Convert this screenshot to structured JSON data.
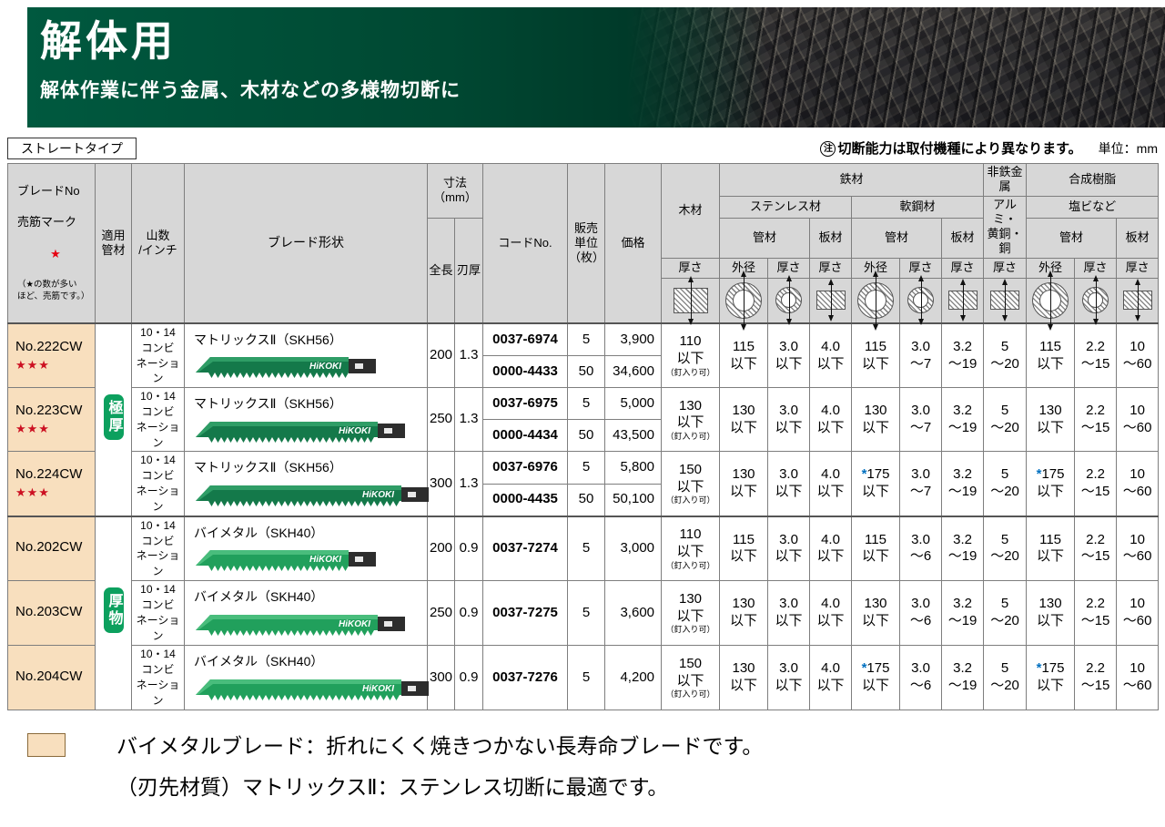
{
  "banner": {
    "title": "解体用",
    "subtitle": "解体作業に伴う金属、木材などの多様物切断に"
  },
  "meta": {
    "type_label": "ストレートタイプ",
    "note_mark": "注",
    "note": "切断能力は取付機種により異なります。",
    "unit_label": "単位：mm"
  },
  "colors": {
    "brand_green": "#00593f",
    "badge_green": "#0ca05e",
    "row_beige": "#f8dfbe",
    "star_red": "#e60012",
    "asterisk_blue": "#0070c0"
  },
  "headers": {
    "blade_no": "ブレードNo",
    "seller_mark": "売筋マーク",
    "star": "★",
    "star_note": "（★の数が多い\nほど、売筋です。）",
    "applicable": "適用\n管材",
    "teeth": "山数\n/インチ",
    "shape": "ブレード形状",
    "dim": "寸法\n（mm）",
    "length": "全長",
    "blade_t": "刃厚",
    "code": "コードNo.",
    "sales_unit": "販売\n単位\n（枚）",
    "price": "価格",
    "wood": "木材",
    "steel": "鉄材",
    "stainless": "ステンレス材",
    "soft": "軟鋼材",
    "nonferrous": "非鉄金属",
    "alum": "アルミ・\n黄銅・銅",
    "resin": "合成樹脂",
    "pvc": "塩ビなど",
    "pipe": "管材",
    "plate": "板材",
    "od": "外径",
    "thickness": "厚さ"
  },
  "groups": [
    {
      "label": "極厚",
      "start": 0,
      "span": 6
    },
    {
      "label": "厚物",
      "start": 3,
      "span": 3
    }
  ],
  "rows": [
    {
      "no": "No.222CW",
      "stars": "★★★",
      "teeth": "10・14\nコンビ\nネーション",
      "shape": "マトリックスⅡ（SKH56）",
      "len": "200",
      "bt": "1.3",
      "entries": [
        {
          "code": "0037-6974",
          "unit": "5",
          "price": "3,900"
        },
        {
          "code": "0000-4433",
          "unit": "50",
          "price": "34,600"
        }
      ],
      "wood": {
        "v": "110\n以下",
        "note": "（釘入り可）"
      },
      "vals": [
        "115\n以下",
        "3.0\n以下",
        "4.0\n以下",
        "115\n以下",
        "3.0\n～7",
        "3.2\n～19",
        "5\n～20",
        "115\n以下",
        "2.2\n～15",
        "10\n～60"
      ]
    },
    {
      "no": "No.223CW",
      "stars": "★★★",
      "teeth": "10・14\nコンビ\nネーション",
      "shape": "マトリックスⅡ（SKH56）",
      "len": "250",
      "bt": "1.3",
      "entries": [
        {
          "code": "0037-6975",
          "unit": "5",
          "price": "5,000"
        },
        {
          "code": "0000-4434",
          "unit": "50",
          "price": "43,500"
        }
      ],
      "wood": {
        "v": "130\n以下",
        "note": "（釘入り可）"
      },
      "vals": [
        "130\n以下",
        "3.0\n以下",
        "4.0\n以下",
        "130\n以下",
        "3.0\n～7",
        "3.2\n～19",
        "5\n～20",
        "130\n以下",
        "2.2\n～15",
        "10\n～60"
      ]
    },
    {
      "no": "No.224CW",
      "stars": "★★★",
      "teeth": "10・14\nコンビ\nネーション",
      "shape": "マトリックスⅡ（SKH56）",
      "len": "300",
      "bt": "1.3",
      "entries": [
        {
          "code": "0037-6976",
          "unit": "5",
          "price": "5,800"
        },
        {
          "code": "0000-4435",
          "unit": "50",
          "price": "50,100"
        }
      ],
      "wood": {
        "v": "150\n以下",
        "note": "（釘入り可）"
      },
      "vals": [
        "130\n以下",
        "3.0\n以下",
        "4.0\n以下",
        "*175\n以下",
        "3.0\n～7",
        "3.2\n～19",
        "5\n～20",
        "*175\n以下",
        "2.2\n～15",
        "10\n～60"
      ]
    },
    {
      "no": "No.202CW",
      "stars": "",
      "teeth": "10・14\nコンビ\nネーション",
      "shape": "バイメタル（SKH40）",
      "len": "200",
      "bt": "0.9",
      "entries": [
        {
          "code": "0037-7274",
          "unit": "5",
          "price": "3,000"
        }
      ],
      "wood": {
        "v": "110\n以下",
        "note": "（釘入り可）"
      },
      "vals": [
        "115\n以下",
        "3.0\n以下",
        "4.0\n以下",
        "115\n以下",
        "3.0\n～6",
        "3.2\n～19",
        "5\n～20",
        "115\n以下",
        "2.2\n～15",
        "10\n～60"
      ]
    },
    {
      "no": "No.203CW",
      "stars": "",
      "teeth": "10・14\nコンビ\nネーション",
      "shape": "バイメタル（SKH40）",
      "len": "250",
      "bt": "0.9",
      "entries": [
        {
          "code": "0037-7275",
          "unit": "5",
          "price": "3,600"
        }
      ],
      "wood": {
        "v": "130\n以下",
        "note": "（釘入り可）"
      },
      "vals": [
        "130\n以下",
        "3.0\n以下",
        "4.0\n以下",
        "130\n以下",
        "3.0\n～6",
        "3.2\n～19",
        "5\n～20",
        "130\n以下",
        "2.2\n～15",
        "10\n～60"
      ]
    },
    {
      "no": "No.204CW",
      "stars": "",
      "teeth": "10・14\nコンビ\nネーション",
      "shape": "バイメタル（SKH40）",
      "len": "300",
      "bt": "0.9",
      "entries": [
        {
          "code": "0037-7276",
          "unit": "5",
          "price": "4,200"
        }
      ],
      "wood": {
        "v": "150\n以下",
        "note": "（釘入り可）"
      },
      "vals": [
        "130\n以下",
        "3.0\n以下",
        "4.0\n以下",
        "*175\n以下",
        "3.0\n～6",
        "3.2\n～19",
        "5\n～20",
        "*175\n以下",
        "2.2\n～15",
        "10\n～60"
      ]
    }
  ],
  "legend": {
    "line1": "バイメタルブレード：折れにくく焼きつかない長寿命ブレードです。",
    "line2": "（刃先材質）マトリックスⅡ：ステンレス切断に最適です。"
  }
}
